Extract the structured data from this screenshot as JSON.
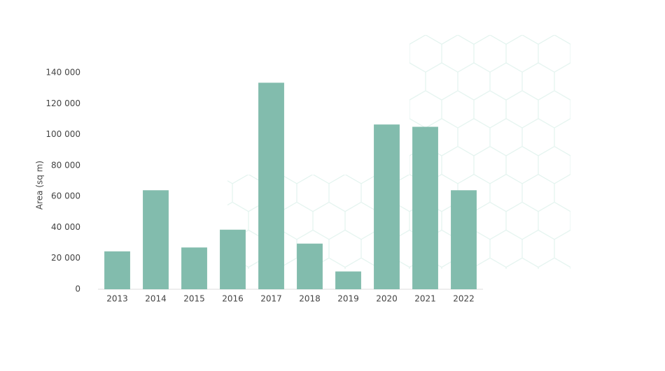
{
  "chart_data": {
    "type": "bar",
    "y_label": "Area (sq m)",
    "categories": [
      "2013",
      "2014",
      "2015",
      "2016",
      "2017",
      "2018",
      "2019",
      "2020",
      "2021",
      "2022"
    ],
    "values": [
      24500,
      64000,
      27000,
      38500,
      133500,
      29500,
      11500,
      106500,
      105000,
      64000
    ],
    "color": "#82bcad",
    "ylim": [
      0,
      140000
    ],
    "yticks": [
      0,
      {
        "value": 20000,
        "label": "20 000"
      },
      {
        "value": 40000,
        "label": "40 000"
      },
      {
        "value": 60000,
        "label": "60 000"
      },
      {
        "value": 80000,
        "label": "80 000"
      },
      {
        "value": 100000,
        "label": "100 000"
      },
      {
        "value": 120000,
        "label": "120 000"
      },
      {
        "value": 140000,
        "label": "140 000"
      }
    ],
    "grid": false
  }
}
